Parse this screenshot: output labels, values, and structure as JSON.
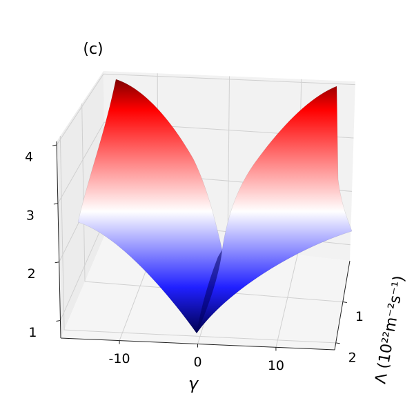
{
  "chart_data": {
    "type": "surface3d",
    "title": "(c)",
    "xlabel": "γ",
    "ylabel": "Λ (10²²m⁻²s⁻¹)",
    "xlim": [
      -17.5,
      17.5
    ],
    "xticks": [
      -10,
      0,
      10
    ],
    "ylim": [
      0,
      2.17
    ],
    "yticks": [
      1,
      2
    ],
    "zlim": [
      0.7,
      4.06
    ],
    "zticks": [
      1,
      2,
      3,
      4
    ],
    "colormap": [
      "#800000",
      "#ff0000",
      "#ffffff",
      "#2020ff",
      "#000050"
    ],
    "grid": true
  }
}
